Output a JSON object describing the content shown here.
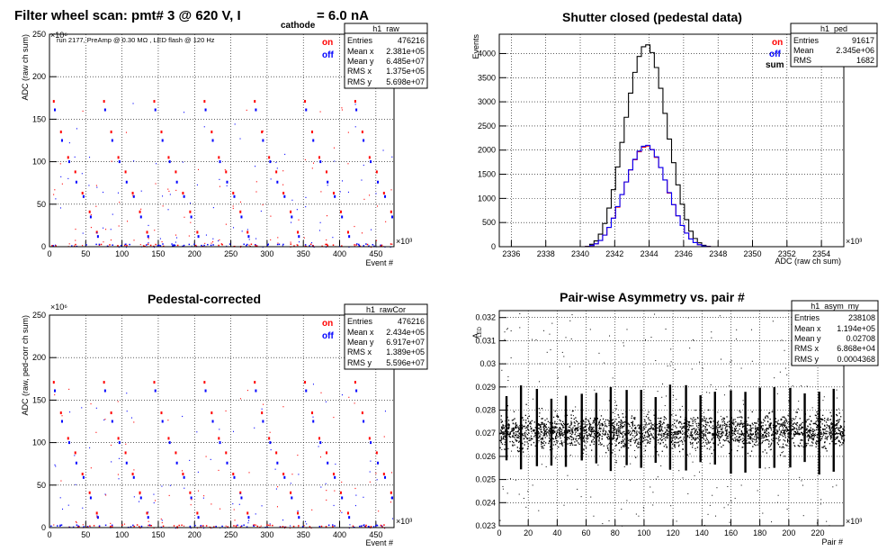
{
  "chart_data": [
    {
      "type": "scatter",
      "title_parts": {
        "main": "Filter wheel scan: pmt#   3 @   620 V, I",
        "sub": "cathode",
        "tail": "= 6.0 nA"
      },
      "annotation": "run 2177, PreAmp @ 0.30 MΩ , LED flash @  120 Hz",
      "xlabel": "Event #",
      "ylabel": "ADC (raw ch sum)",
      "xlim": [
        0,
        475
      ],
      "ylim": [
        0,
        250
      ],
      "xticks": [
        "0",
        "50",
        "100",
        "150",
        "200",
        "250",
        "300",
        "350",
        "400",
        "450"
      ],
      "yticks": [
        "0",
        "50",
        "100",
        "150",
        "200",
        "250"
      ],
      "xscale": "×10³",
      "yscale": "×10⁶",
      "grid": true,
      "legend": [
        {
          "name": "on",
          "color": "#ff0000"
        },
        {
          "name": "off",
          "color": "#0000ff"
        }
      ],
      "stats": {
        "name": "h1_raw",
        "rows": [
          [
            "Entries",
            "476216"
          ],
          [
            "Mean x",
            "2.381e+05"
          ],
          [
            "Mean y",
            "6.485e+07"
          ],
          [
            "RMS x",
            "1.375e+05"
          ],
          [
            "RMS y",
            "5.698e+07"
          ]
        ]
      },
      "on_levels": [
        171,
        135,
        105,
        88,
        63,
        41,
        17
      ],
      "off_levels": [
        161,
        125,
        100,
        76,
        59,
        35,
        12
      ]
    },
    {
      "type": "histogram",
      "title": "Shutter closed (pedestal data)",
      "xlabel": "ADC (raw ch sum)",
      "ylabel": "Events",
      "xlim": [
        2335.3,
        2355.3
      ],
      "ylim": [
        0,
        4400
      ],
      "xticks": [
        "2336",
        "2338",
        "2340",
        "2342",
        "2344",
        "2346",
        "2348",
        "2350",
        "2352",
        "2354"
      ],
      "yticks": [
        "0",
        "500",
        "1000",
        "1500",
        "2000",
        "2500",
        "3000",
        "3500",
        "4000"
      ],
      "xscale": "×10³",
      "grid": true,
      "legend": [
        {
          "name": "on",
          "color": "#ff0000"
        },
        {
          "name": "off",
          "color": "#0000ff"
        },
        {
          "name": "sum",
          "color": "#000000"
        }
      ],
      "stats": {
        "name": "h1_ped",
        "rows": [
          [
            "Entries",
            "91617"
          ],
          [
            "Mean",
            "2.345e+06"
          ],
          [
            "RMS",
            "1682"
          ]
        ]
      },
      "series": [
        {
          "name": "sum",
          "color": "#000000",
          "values": [
            0,
            0,
            0,
            0,
            5,
            50,
            120,
            260,
            480,
            800,
            1180,
            1650,
            2160,
            2680,
            3180,
            3610,
            3940,
            4140,
            4180,
            4020,
            3710,
            3280,
            2760,
            2230,
            1740,
            1280,
            880,
            560,
            320,
            170,
            80,
            30,
            8,
            0,
            0,
            0,
            0,
            0,
            0,
            0,
            0,
            0,
            0,
            0
          ]
        },
        {
          "name": "on",
          "color": "#ff0000",
          "values": [
            0,
            0,
            0,
            0,
            2,
            25,
            60,
            130,
            240,
            400,
            590,
            820,
            1080,
            1340,
            1590,
            1800,
            1965,
            2060,
            2085,
            2010,
            1850,
            1640,
            1380,
            1110,
            870,
            640,
            440,
            280,
            160,
            85,
            40,
            15,
            4,
            0,
            0,
            0,
            0,
            0,
            0,
            0,
            0,
            0,
            0,
            0
          ]
        },
        {
          "name": "off",
          "color": "#0000ff",
          "values": [
            0,
            0,
            0,
            0,
            2,
            25,
            60,
            130,
            240,
            400,
            590,
            830,
            1080,
            1340,
            1590,
            1810,
            1980,
            2080,
            2100,
            2010,
            1860,
            1640,
            1380,
            1120,
            870,
            640,
            440,
            280,
            160,
            85,
            40,
            15,
            4,
            0,
            0,
            0,
            0,
            0,
            0,
            0,
            0,
            0,
            0,
            0
          ]
        }
      ]
    },
    {
      "type": "scatter",
      "title": "Pedestal-corrected",
      "xlabel": "Event #",
      "ylabel": "ADC (raw, ped-corr ch sum)",
      "xlim": [
        0,
        475
      ],
      "ylim": [
        0,
        250
      ],
      "xticks": [
        "0",
        "50",
        "100",
        "150",
        "200",
        "250",
        "300",
        "350",
        "400",
        "450"
      ],
      "yticks": [
        "0",
        "50",
        "100",
        "150",
        "200",
        "250"
      ],
      "xscale": "×10³",
      "yscale": "×10⁶",
      "grid": true,
      "legend": [
        {
          "name": "on",
          "color": "#ff0000"
        },
        {
          "name": "off",
          "color": "#0000ff"
        }
      ],
      "stats": {
        "name": "h1_rawCor",
        "rows": [
          [
            "Entries",
            "476216"
          ],
          [
            "Mean x",
            "2.434e+05"
          ],
          [
            "Mean y",
            "6.917e+07"
          ],
          [
            "RMS x",
            "1.389e+05"
          ],
          [
            "RMS y",
            "5.596e+07"
          ]
        ]
      },
      "on_levels": [
        171,
        135,
        105,
        88,
        63,
        41,
        17
      ],
      "off_levels": [
        161,
        125,
        100,
        76,
        59,
        35,
        12
      ]
    },
    {
      "type": "scatter",
      "title": "Pair-wise Asymmetry vs. pair #",
      "xlabel": "Pair #",
      "ylabel": "A",
      "ylabel_sub": "LED",
      "xlim": [
        0,
        238
      ],
      "ylim": [
        0.023,
        0.0323
      ],
      "xticks": [
        "0",
        "20",
        "40",
        "60",
        "80",
        "100",
        "120",
        "140",
        "160",
        "180",
        "200",
        "220"
      ],
      "yticks": [
        "0.023",
        "0.024",
        "0.025",
        "0.026",
        "0.027",
        "0.028",
        "0.029",
        "0.03",
        "0.031",
        "0.032"
      ],
      "xscale": "×10³",
      "grid": true,
      "stats": {
        "name": "h1_asym_my",
        "rows": [
          [
            "Entries",
            "238108"
          ],
          [
            "Mean x",
            "1.194e+05"
          ],
          [
            "Mean y",
            "0.02708"
          ],
          [
            "RMS x",
            "6.868e+04"
          ],
          [
            "RMS y",
            "0.0004368"
          ]
        ]
      },
      "band_center": 0.02708,
      "band_rms": 0.0004368,
      "spike_pairs": [
        5,
        15,
        26,
        36,
        46,
        57,
        67,
        77,
        88,
        98,
        108,
        118,
        129,
        139,
        149,
        160,
        170,
        180,
        190,
        201,
        211,
        221,
        231
      ]
    }
  ]
}
